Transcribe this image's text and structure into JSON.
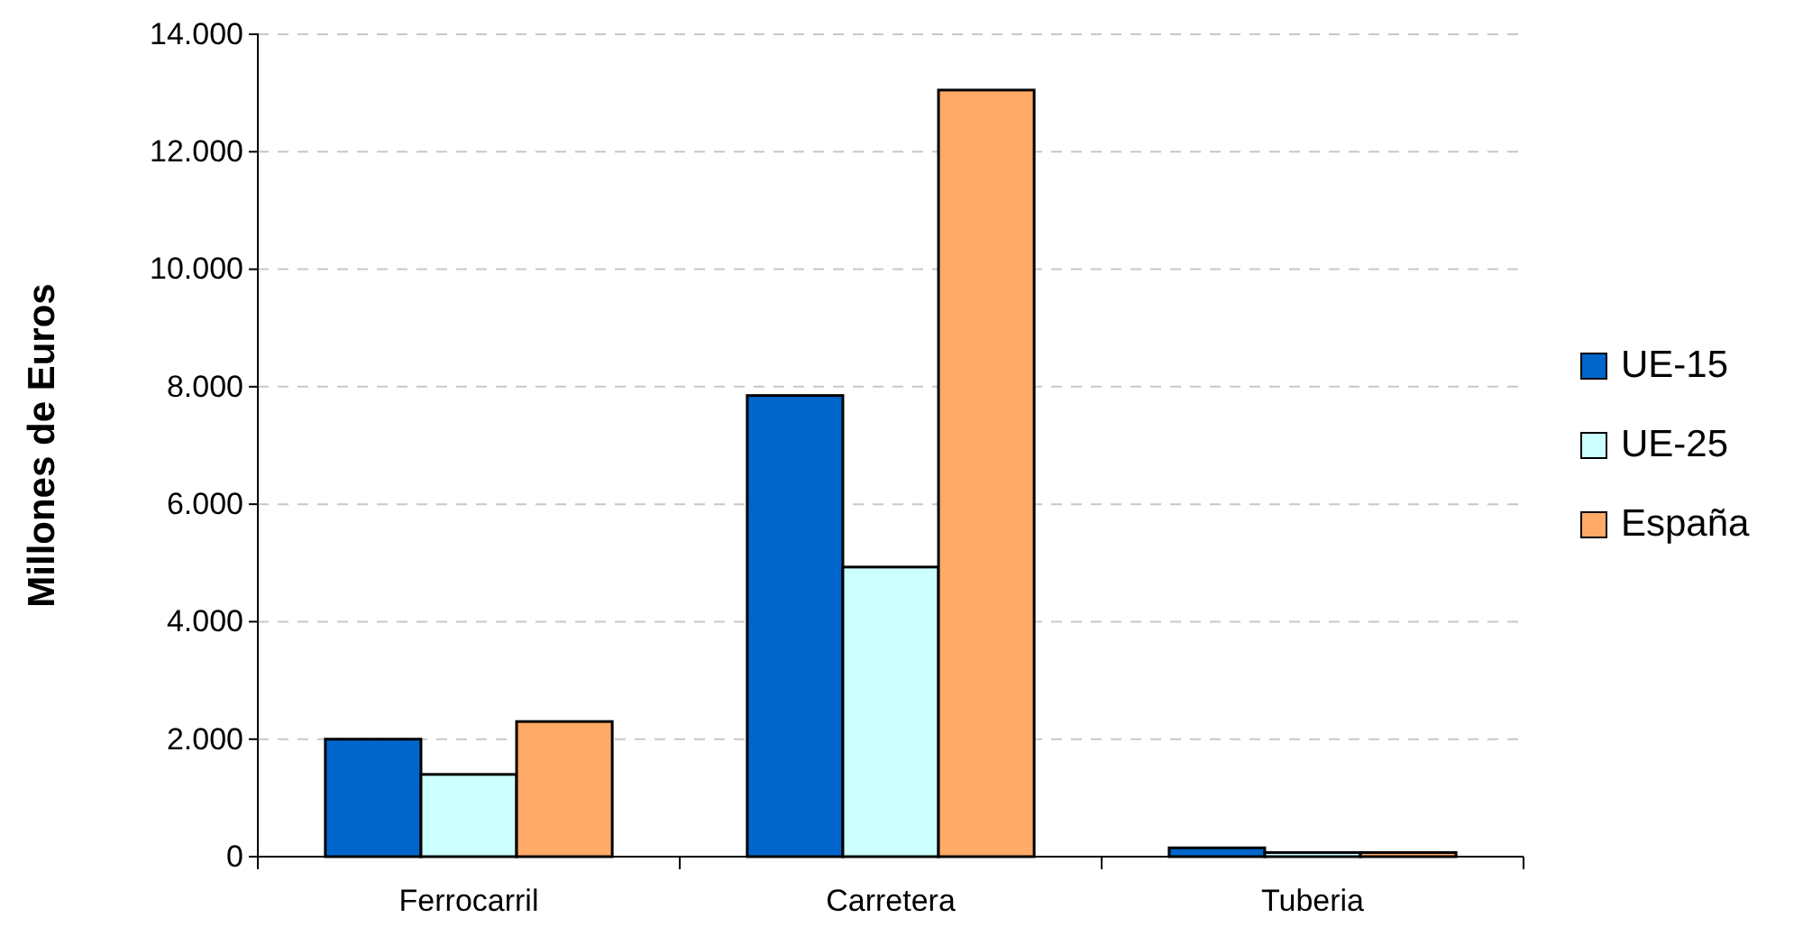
{
  "chart_data": {
    "type": "bar",
    "ylabel": "Millones de Euros",
    "categories": [
      "Ferrocarril",
      "Carretera",
      "Tuberia"
    ],
    "series": [
      {
        "name": "UE-15",
        "color": "#0066cc",
        "values": [
          2000,
          7850,
          150
        ]
      },
      {
        "name": "UE-25",
        "color": "#ccffff",
        "values": [
          1400,
          4930,
          70
        ]
      },
      {
        "name": "España",
        "color": "#ffaa66",
        "values": [
          2300,
          13050,
          70
        ]
      }
    ],
    "ylim": [
      0,
      14000
    ],
    "yticks": [
      {
        "value": 0,
        "label": "0"
      },
      {
        "value": 2000,
        "label": "2.000"
      },
      {
        "value": 4000,
        "label": "4.000"
      },
      {
        "value": 6000,
        "label": "6.000"
      },
      {
        "value": 8000,
        "label": "8.000"
      },
      {
        "value": 10000,
        "label": "10.000"
      },
      {
        "value": 12000,
        "label": "12.000"
      },
      {
        "value": 14000,
        "label": "14.000"
      }
    ],
    "grid": "y",
    "legend": "right"
  }
}
